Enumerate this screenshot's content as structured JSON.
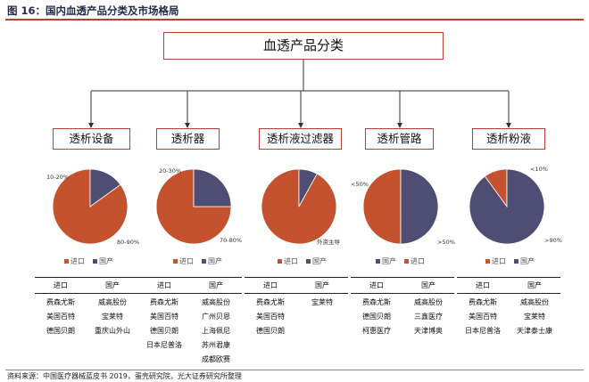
{
  "figure_title": "图 16：国内血透产品分类及市场格局",
  "main_title": "血透产品分类",
  "colors": {
    "import": "#c4522e",
    "domestic": "#4e4d73",
    "accent": "#b5412e"
  },
  "legend_labels": {
    "import": "进口",
    "domestic": "国产"
  },
  "table_headers": {
    "import": "进口",
    "domestic": "国产"
  },
  "categories": [
    {
      "name": "透析设备",
      "chart_data": {
        "type": "pie",
        "series": [
          {
            "name": "进口",
            "share": 0.85
          },
          {
            "name": "国产",
            "share": 0.15
          }
        ]
      },
      "labels": [
        "80-90%",
        "10-20%"
      ],
      "legend_order": [
        "import",
        "domestic"
      ],
      "import_brands": [
        "费森尤斯",
        "美国百特",
        "德国贝朗"
      ],
      "domestic_brands": [
        "威高股份",
        "宝莱特",
        "重庆山外山"
      ]
    },
    {
      "name": "透析器",
      "chart_data": {
        "type": "pie",
        "series": [
          {
            "name": "进口",
            "share": 0.75
          },
          {
            "name": "国产",
            "share": 0.25
          }
        ]
      },
      "labels": [
        "70-80%",
        "20-30%"
      ],
      "legend_order": [
        "import",
        "domestic"
      ],
      "import_brands": [
        "费森尤斯",
        "美国百特",
        "德国贝朗",
        "日本尼普洛"
      ],
      "domestic_brands": [
        "威高股份",
        "广州贝恩",
        "上海佩尼",
        "苏州君康",
        "成都欧赛"
      ]
    },
    {
      "name": "透析液过滤器",
      "chart_data": {
        "type": "pie",
        "series": [
          {
            "name": "进口",
            "share": 0.92
          },
          {
            "name": "国产",
            "share": 0.08
          }
        ]
      },
      "labels": [
        "外资主导"
      ],
      "legend_order": [
        "import",
        "domestic"
      ],
      "import_brands": [
        "费森尤斯",
        "美国百特",
        "德国贝朗"
      ],
      "domestic_brands": [
        "宝莱特"
      ]
    },
    {
      "name": "透析管路",
      "chart_data": {
        "type": "pie",
        "series": [
          {
            "name": "进口",
            "share": 0.5
          },
          {
            "name": "国产",
            "share": 0.5
          }
        ]
      },
      "labels": [
        "<50%",
        ">50%"
      ],
      "legend_order": [
        "domestic",
        "import"
      ],
      "import_brands": [
        "费森尤斯",
        "德国贝朗",
        "柯惠医疗"
      ],
      "domestic_brands": [
        "威高股份",
        "三鑫医疗",
        "天津博奥"
      ]
    },
    {
      "name": "透析粉液",
      "chart_data": {
        "type": "pie",
        "series": [
          {
            "name": "进口",
            "share": 0.1
          },
          {
            "name": "国产",
            "share": 0.9
          }
        ]
      },
      "labels": [
        "<10%",
        ">90%"
      ],
      "legend_order": [
        "import",
        "domestic"
      ],
      "import_brands": [
        "费森尤斯",
        "美国百特",
        "日本尼普洛"
      ],
      "domestic_brands": [
        "威高股份",
        "宝莱特",
        "天津泰士康"
      ]
    }
  ],
  "source": "资料来源：中国医疗器械蓝皮书 2019，蛋壳研究院，光大证券研究所整理"
}
